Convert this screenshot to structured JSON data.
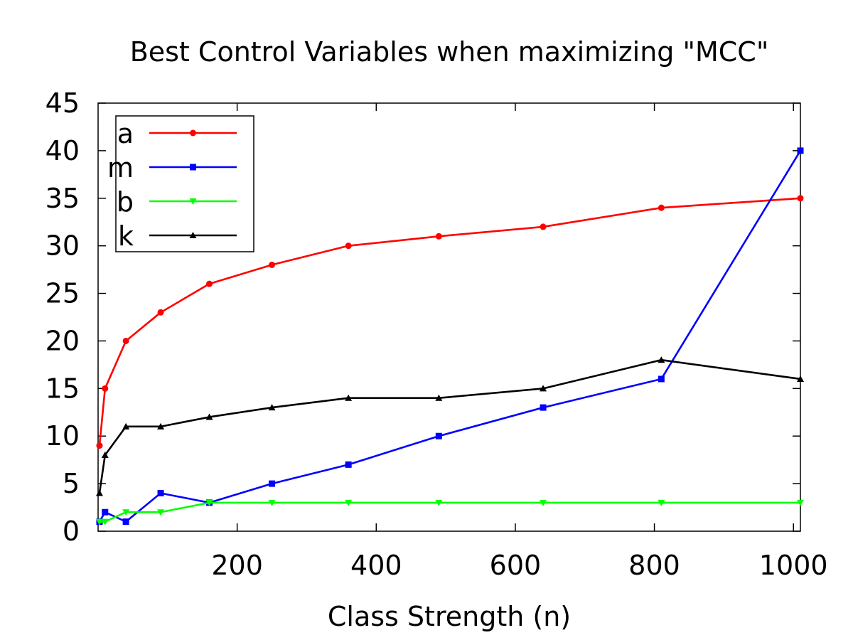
{
  "chart_data": {
    "type": "line",
    "title": "Best Control Variables when maximizing \"MCC\"",
    "xlabel": "Class Strength (n)",
    "ylabel": "",
    "xlim": [
      0,
      1010
    ],
    "ylim": [
      0,
      45
    ],
    "x_ticks": [
      200,
      400,
      600,
      800,
      1000
    ],
    "y_ticks": [
      0,
      5,
      10,
      15,
      20,
      25,
      30,
      35,
      40,
      45
    ],
    "grid": false,
    "legend_position": "top-left",
    "x": [
      2,
      10,
      40,
      90,
      160,
      250,
      360,
      490,
      640,
      810,
      1010
    ],
    "series": [
      {
        "name": "a",
        "color": "#ff0000",
        "marker": "circle",
        "values": [
          9,
          15,
          20,
          23,
          26,
          28,
          30,
          31,
          32,
          34,
          35
        ]
      },
      {
        "name": "m",
        "color": "#0000ff",
        "marker": "square",
        "values": [
          1,
          2,
          1,
          4,
          3,
          5,
          7,
          10,
          13,
          16,
          40
        ]
      },
      {
        "name": "b",
        "color": "#00ff00",
        "marker": "triangle-down",
        "values": [
          1,
          1,
          2,
          2,
          3,
          3,
          3,
          3,
          3,
          3,
          3
        ]
      },
      {
        "name": "k",
        "color": "#000000",
        "marker": "triangle-up",
        "values": [
          4,
          8,
          11,
          11,
          12,
          13,
          14,
          14,
          15,
          18,
          16
        ]
      }
    ]
  }
}
